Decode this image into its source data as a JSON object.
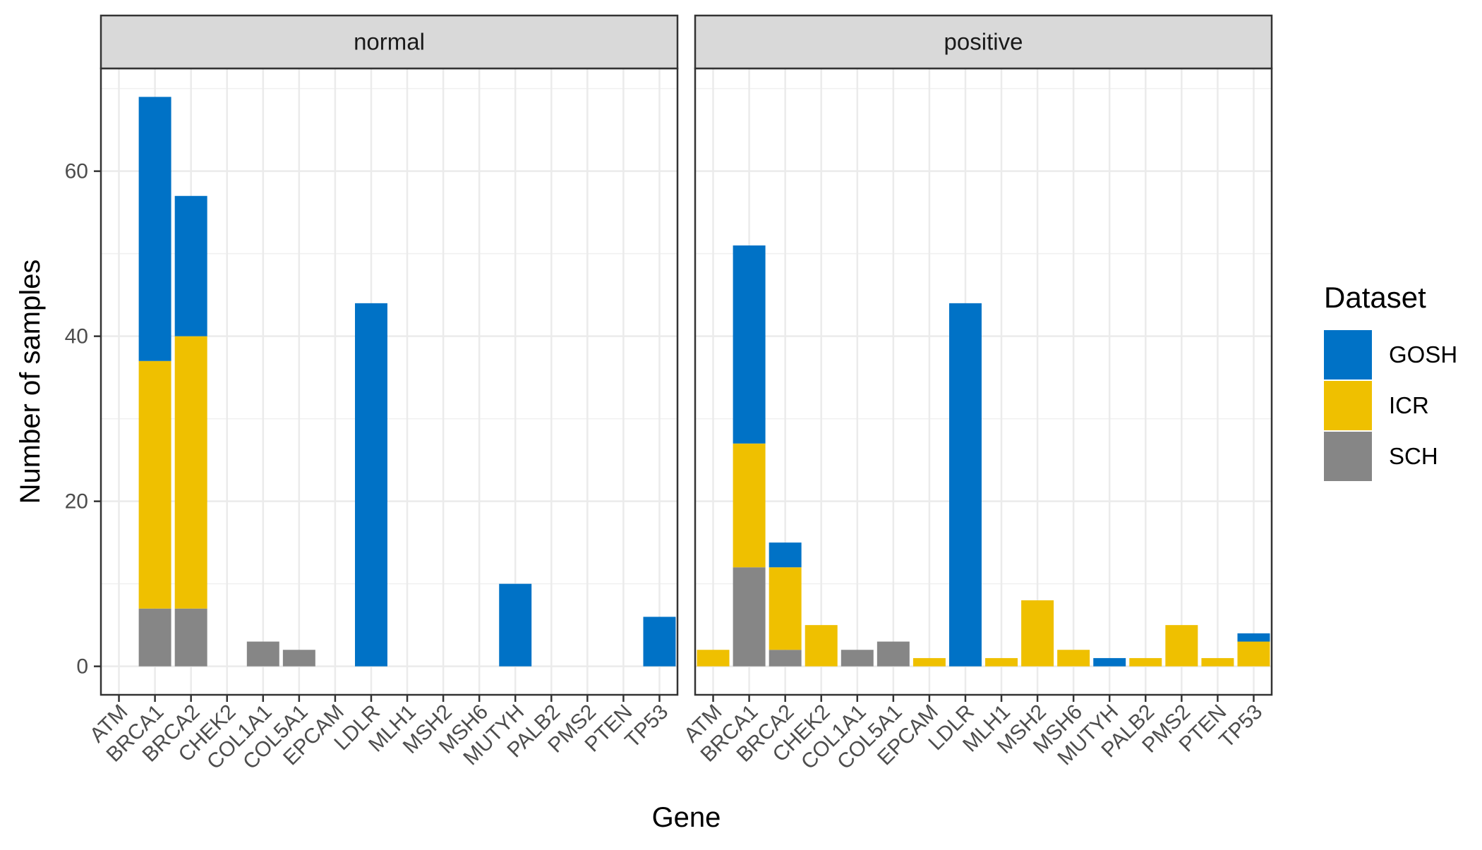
{
  "chart_data": {
    "type": "bar",
    "stacked": true,
    "facets": [
      "normal",
      "positive"
    ],
    "categories": [
      "ATM",
      "BRCA1",
      "BRCA2",
      "CHEK2",
      "COL1A1",
      "COL5A1",
      "EPCAM",
      "LDLR",
      "MLH1",
      "MSH2",
      "MSH6",
      "MUTYH",
      "PALB2",
      "PMS2",
      "PTEN",
      "TP53"
    ],
    "series": [
      {
        "name": "GOSH",
        "color": "#0072C6",
        "values": {
          "normal": [
            0,
            32,
            17,
            0,
            0,
            0,
            0,
            44,
            0,
            0,
            0,
            10,
            0,
            0,
            0,
            6
          ],
          "positive": [
            0,
            24,
            3,
            0,
            0,
            0,
            0,
            44,
            0,
            0,
            0,
            1,
            0,
            0,
            0,
            1
          ]
        }
      },
      {
        "name": "ICR",
        "color": "#EFC000",
        "values": {
          "normal": [
            0,
            30,
            33,
            0,
            0,
            0,
            0,
            0,
            0,
            0,
            0,
            0,
            0,
            0,
            0,
            0
          ],
          "positive": [
            2,
            15,
            10,
            5,
            0,
            0,
            1,
            0,
            1,
            8,
            2,
            0,
            1,
            5,
            1,
            3
          ]
        }
      },
      {
        "name": "SCH",
        "color": "#868686",
        "values": {
          "normal": [
            0,
            7,
            7,
            0,
            3,
            2,
            0,
            0,
            0,
            0,
            0,
            0,
            0,
            0,
            0,
            0
          ],
          "positive": [
            0,
            12,
            2,
            0,
            2,
            3,
            0,
            0,
            0,
            0,
            0,
            0,
            0,
            0,
            0,
            0
          ]
        }
      }
    ],
    "xlabel": "Gene",
    "ylabel": "Number of samples",
    "yticks": [
      0,
      20,
      40,
      60
    ],
    "ylim": [
      -3.45,
      72.45
    ],
    "legend_title": "Dataset",
    "legend_position": "right",
    "grid": true
  }
}
